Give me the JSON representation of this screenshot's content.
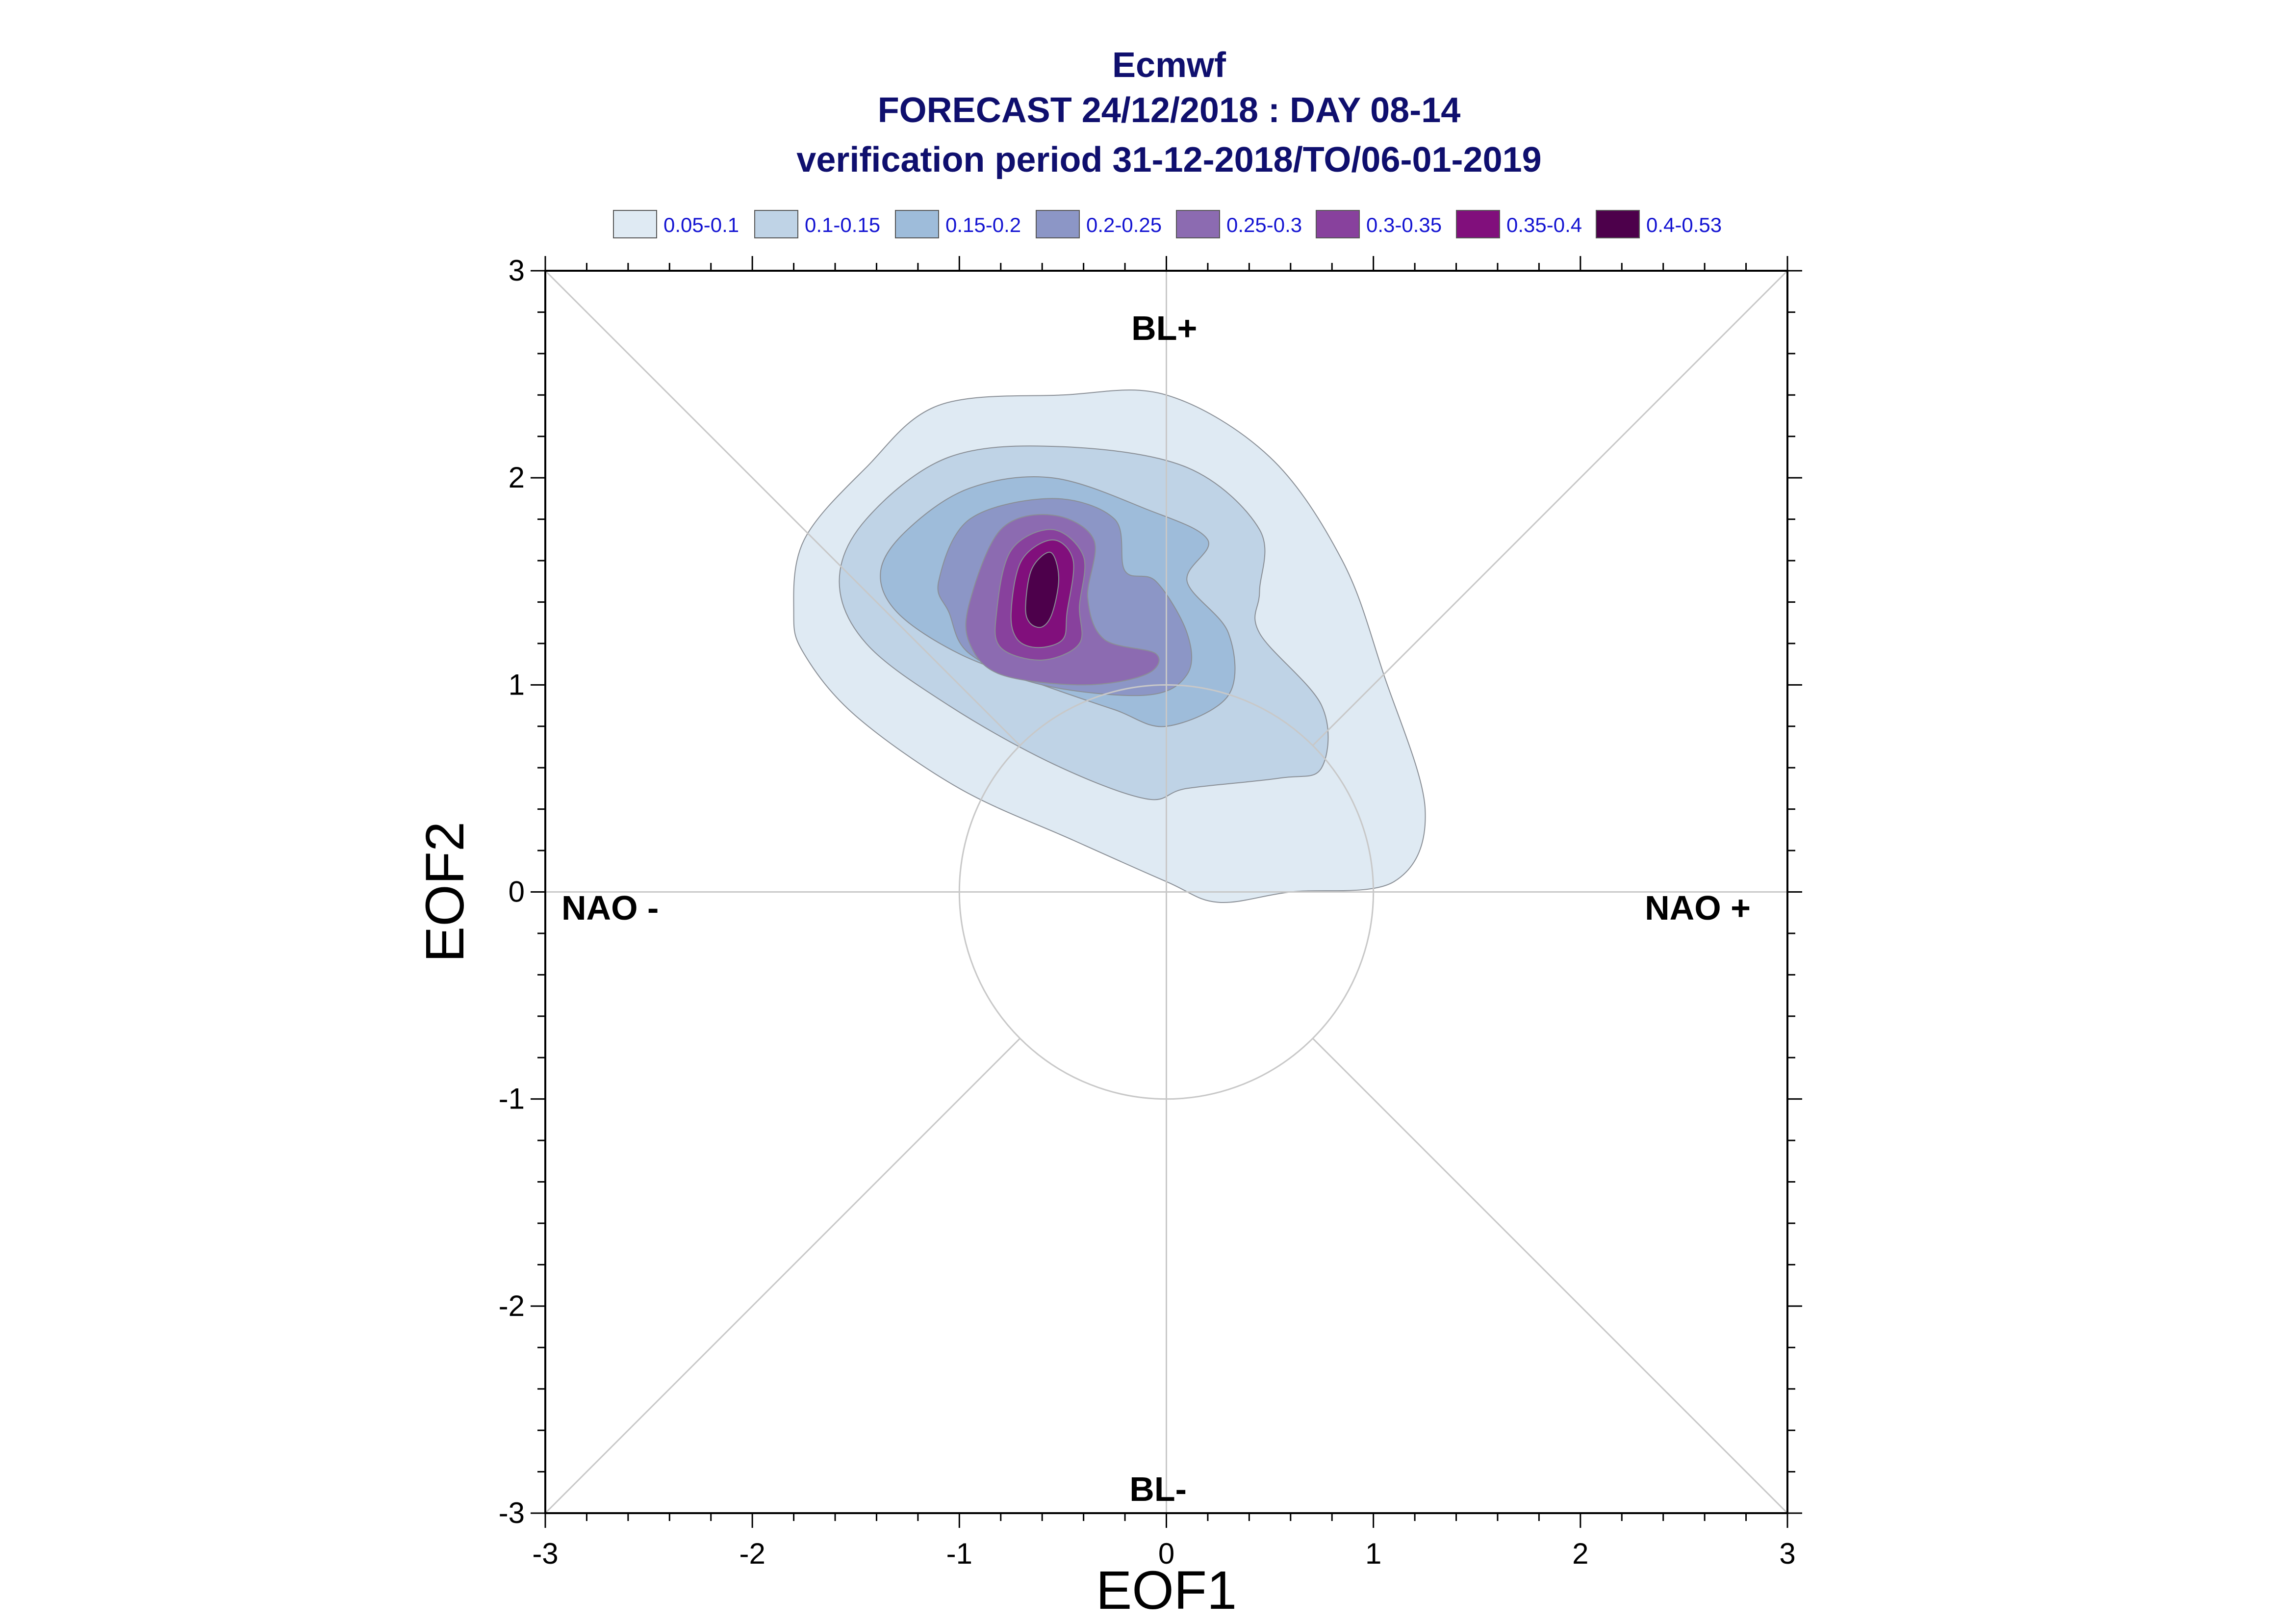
{
  "chart_data": {
    "type": "contour",
    "title_lines": [
      "Ecmwf",
      "FORECAST 24/12/2018 : DAY 08-14",
      "verification period 31-12-2018/TO/06-01-2019"
    ],
    "xlabel": "EOF1",
    "ylabel": "EOF2",
    "xlim": [
      -3,
      3
    ],
    "ylim": [
      -3,
      3
    ],
    "xticks": [
      "-3",
      "-2",
      "-1",
      "0",
      "1",
      "2",
      "3"
    ],
    "yticks": [
      "-3",
      "-2",
      "-1",
      "0",
      "1",
      "2",
      "3"
    ],
    "regime_labels": {
      "top": "BL+",
      "bottom": "BL-",
      "left": "NAO -",
      "right": "NAO +"
    },
    "legend": [
      {
        "label": "0.05-0.1",
        "color": "#dfeaf3"
      },
      {
        "label": "0.1-0.15",
        "color": "#bfd3e6"
      },
      {
        "label": "0.15-0.2",
        "color": "#9ebcda"
      },
      {
        "label": "0.2-0.25",
        "color": "#8c96c6"
      },
      {
        "label": "0.25-0.3",
        "color": "#8c6bb1"
      },
      {
        "label": "0.3-0.35",
        "color": "#88419d"
      },
      {
        "label": "0.35-0.4",
        "color": "#810f7c"
      },
      {
        "label": "0.4-0.53",
        "color": "#4d004b"
      }
    ],
    "reference_circle_radius": 1,
    "contours": [
      {
        "level": "0.05-0.1",
        "points": [
          [
            -1.8,
            1.35
          ],
          [
            -1.75,
            1.7
          ],
          [
            -1.45,
            2.05
          ],
          [
            -1.1,
            2.35
          ],
          [
            -0.5,
            2.4
          ],
          [
            0,
            2.4
          ],
          [
            0.5,
            2.1
          ],
          [
            0.85,
            1.6
          ],
          [
            1.05,
            1.05
          ],
          [
            1.25,
            0.4
          ],
          [
            1.1,
            0.05
          ],
          [
            0.6,
            0
          ],
          [
            0.25,
            -0.05
          ],
          [
            0,
            0.05
          ],
          [
            -0.45,
            0.25
          ],
          [
            -1,
            0.5
          ],
          [
            -1.5,
            0.85
          ],
          [
            -1.75,
            1.15
          ]
        ]
      },
      {
        "level": "0.1-0.15",
        "points": [
          [
            -1.58,
            1.5
          ],
          [
            -1.45,
            1.8
          ],
          [
            -1.05,
            2.1
          ],
          [
            -0.5,
            2.15
          ],
          [
            0.1,
            2.05
          ],
          [
            0.45,
            1.75
          ],
          [
            0.45,
            1.45
          ],
          [
            0.45,
            1.25
          ],
          [
            0.75,
            0.9
          ],
          [
            0.75,
            0.6
          ],
          [
            0.55,
            0.55
          ],
          [
            0.1,
            0.5
          ],
          [
            -0.1,
            0.45
          ],
          [
            -0.55,
            0.62
          ],
          [
            -1.05,
            0.9
          ],
          [
            -1.45,
            1.2
          ]
        ]
      },
      {
        "level": "0.15-0.2",
        "points": [
          [
            -1.38,
            1.55
          ],
          [
            -1.25,
            1.75
          ],
          [
            -0.95,
            1.95
          ],
          [
            -0.55,
            2.0
          ],
          [
            -0.1,
            1.85
          ],
          [
            0.2,
            1.7
          ],
          [
            0.1,
            1.5
          ],
          [
            0.3,
            1.25
          ],
          [
            0.3,
            0.95
          ],
          [
            0.0,
            0.8
          ],
          [
            -0.25,
            0.88
          ],
          [
            -0.6,
            1.0
          ],
          [
            -1.0,
            1.15
          ],
          [
            -1.3,
            1.35
          ]
        ]
      },
      {
        "level": "0.2-0.25",
        "points": [
          [
            -1.1,
            1.5
          ],
          [
            -0.95,
            1.8
          ],
          [
            -0.55,
            1.9
          ],
          [
            -0.25,
            1.8
          ],
          [
            -0.2,
            1.55
          ],
          [
            -0.05,
            1.5
          ],
          [
            0.1,
            1.25
          ],
          [
            0.1,
            1.05
          ],
          [
            -0.1,
            0.95
          ],
          [
            -0.6,
            1.0
          ],
          [
            -0.95,
            1.15
          ],
          [
            -1.05,
            1.35
          ]
        ]
      },
      {
        "level": "0.25-0.3",
        "points": [
          [
            -0.95,
            1.4
          ],
          [
            -0.8,
            1.75
          ],
          [
            -0.55,
            1.82
          ],
          [
            -0.35,
            1.7
          ],
          [
            -0.38,
            1.42
          ],
          [
            -0.3,
            1.22
          ],
          [
            -0.05,
            1.15
          ],
          [
            -0.1,
            1.05
          ],
          [
            -0.4,
            1.0
          ],
          [
            -0.8,
            1.05
          ],
          [
            -0.95,
            1.2
          ]
        ]
      },
      {
        "level": "0.3-0.35",
        "points": [
          [
            -0.82,
            1.35
          ],
          [
            -0.75,
            1.65
          ],
          [
            -0.55,
            1.75
          ],
          [
            -0.4,
            1.62
          ],
          [
            -0.42,
            1.38
          ],
          [
            -0.42,
            1.2
          ],
          [
            -0.6,
            1.12
          ],
          [
            -0.8,
            1.18
          ]
        ]
      },
      {
        "level": "0.35-0.4",
        "points": [
          [
            -0.75,
            1.35
          ],
          [
            -0.7,
            1.6
          ],
          [
            -0.55,
            1.7
          ],
          [
            -0.45,
            1.6
          ],
          [
            -0.48,
            1.35
          ],
          [
            -0.5,
            1.22
          ],
          [
            -0.62,
            1.18
          ],
          [
            -0.72,
            1.22
          ]
        ]
      },
      {
        "level": "0.4-0.53",
        "points": [
          [
            -0.68,
            1.38
          ],
          [
            -0.65,
            1.56
          ],
          [
            -0.56,
            1.64
          ],
          [
            -0.52,
            1.52
          ],
          [
            -0.55,
            1.35
          ],
          [
            -0.6,
            1.28
          ],
          [
            -0.66,
            1.3
          ]
        ]
      }
    ]
  }
}
